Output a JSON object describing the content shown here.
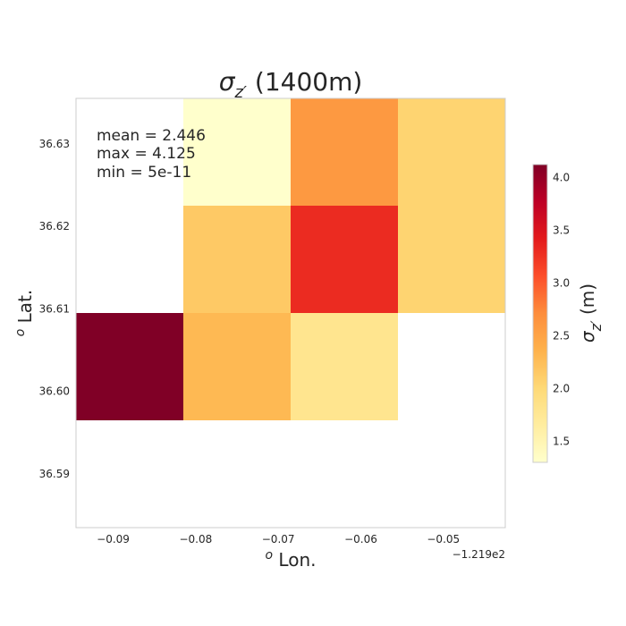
{
  "chart_data": {
    "type": "heatmap",
    "title": {
      "sym": "σ",
      "sub": "z′",
      "rest": " (1400m)"
    },
    "xlabel": {
      "sup": "o",
      "rest": " Lon."
    },
    "ylabel": {
      "sup": "o",
      "rest": " Lat."
    },
    "x_offset_label": "−1.219e2",
    "x_ticks": [
      -0.09,
      -0.08,
      -0.07,
      -0.06,
      -0.05
    ],
    "x_tick_labels": [
      "−0.09",
      "−0.08",
      "−0.07",
      "−0.06",
      "−0.05"
    ],
    "y_ticks": [
      36.59,
      36.6,
      36.61,
      36.62,
      36.63
    ],
    "y_tick_labels": [
      "36.59",
      "36.60",
      "36.61",
      "36.62",
      "36.63"
    ],
    "xlim": [
      -0.0945,
      -0.0425
    ],
    "ylim": [
      36.5835,
      36.6355
    ],
    "cells": [
      {
        "lon": [
          -0.0815,
          -0.0685
        ],
        "lat": [
          36.6225,
          36.6355
        ],
        "value": 1.3
      },
      {
        "lon": [
          -0.0685,
          -0.0555
        ],
        "lat": [
          36.6225,
          36.6355
        ],
        "value": 2.6
      },
      {
        "lon": [
          -0.0555,
          -0.0425
        ],
        "lat": [
          36.6225,
          36.6355
        ],
        "value": 2.05
      },
      {
        "lon": [
          -0.0815,
          -0.0685
        ],
        "lat": [
          36.6095,
          36.6225
        ],
        "value": 2.15
      },
      {
        "lon": [
          -0.0685,
          -0.0555
        ],
        "lat": [
          36.6095,
          36.6225
        ],
        "value": 3.3
      },
      {
        "lon": [
          -0.0555,
          -0.0425
        ],
        "lat": [
          36.6095,
          36.6225
        ],
        "value": 2.05
      },
      {
        "lon": [
          -0.0945,
          -0.0815
        ],
        "lat": [
          36.5965,
          36.6095
        ],
        "value": 4.125
      },
      {
        "lon": [
          -0.0815,
          -0.0685
        ],
        "lat": [
          36.5965,
          36.6095
        ],
        "value": 2.3
      },
      {
        "lon": [
          -0.0685,
          -0.0555
        ],
        "lat": [
          36.5965,
          36.6095
        ],
        "value": 1.8
      }
    ],
    "stats": [
      "mean = 2.446",
      "max = 4.125",
      "min = 5e-11"
    ],
    "colorbar": {
      "label": {
        "sym": "σ",
        "sub": "z′",
        "rest": " (m)"
      },
      "vmin": 1.3,
      "vmax": 4.125,
      "ticks": [
        1.5,
        2.0,
        2.5,
        3.0,
        3.5,
        4.0
      ],
      "tick_labels": [
        "1.5",
        "2.0",
        "2.5",
        "3.0",
        "3.5",
        "4.0"
      ],
      "colormap": "YlOrRd",
      "colors": [
        "#ffffcc",
        "#ffeda0",
        "#fed976",
        "#feb24c",
        "#fd8d3c",
        "#fc4e2a",
        "#e31a1c",
        "#bd0026",
        "#800026"
      ]
    },
    "grid": false,
    "frame_color": "#cccccc"
  }
}
